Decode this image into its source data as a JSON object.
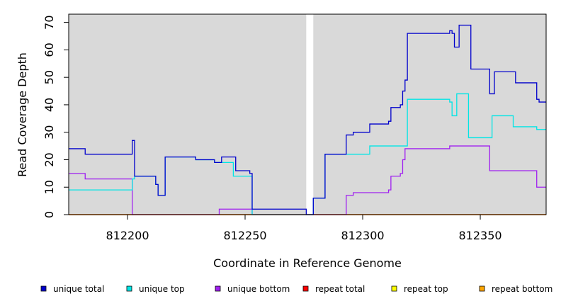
{
  "chart_data": {
    "type": "line",
    "title": "",
    "xlabel": "Coordinate in Reference Genome",
    "ylabel": "Read Coverage Depth",
    "xlim": [
      812175,
      812378
    ],
    "ylim": [
      0,
      73
    ],
    "x_ticks": [
      812200,
      812250,
      812300,
      812350
    ],
    "y_ticks": [
      0,
      10,
      20,
      30,
      40,
      50,
      60,
      70
    ],
    "x_tick_labels": [
      "812200",
      "812250",
      "812300",
      "812350"
    ],
    "y_tick_labels": [
      "0",
      "10",
      "20",
      "30",
      "40",
      "50",
      "60",
      "70"
    ],
    "grid": false,
    "shaded_regions": [
      {
        "x": [
          812175,
          812276
        ],
        "color": "#d9d9d9"
      },
      {
        "x": [
          812279,
          812378
        ],
        "color": "#d9d9d9"
      }
    ],
    "series": [
      {
        "name": "unique total",
        "color": "#0000cc",
        "step": true,
        "points": [
          [
            812175,
            24
          ],
          [
            812182,
            24
          ],
          [
            812182,
            22
          ],
          [
            812202,
            22
          ],
          [
            812202,
            27
          ],
          [
            812203,
            27
          ],
          [
            812203,
            14
          ],
          [
            812212,
            14
          ],
          [
            812212,
            11
          ],
          [
            812213,
            11
          ],
          [
            812213,
            7
          ],
          [
            812216,
            7
          ],
          [
            812216,
            21
          ],
          [
            812229,
            21
          ],
          [
            812229,
            20
          ],
          [
            812237,
            20
          ],
          [
            812237,
            19
          ],
          [
            812240,
            19
          ],
          [
            812240,
            21
          ],
          [
            812246,
            21
          ],
          [
            812246,
            16
          ],
          [
            812252,
            16
          ],
          [
            812252,
            15
          ],
          [
            812253,
            15
          ],
          [
            812253,
            2
          ],
          [
            812276,
            2
          ],
          [
            812276,
            0
          ],
          [
            812279,
            0
          ],
          [
            812279,
            6
          ],
          [
            812284,
            6
          ],
          [
            812284,
            22
          ],
          [
            812293,
            22
          ],
          [
            812293,
            29
          ],
          [
            812296,
            29
          ],
          [
            812296,
            30
          ],
          [
            812303,
            30
          ],
          [
            812303,
            33
          ],
          [
            812311,
            33
          ],
          [
            812311,
            34
          ],
          [
            812312,
            34
          ],
          [
            812312,
            39
          ],
          [
            812316,
            39
          ],
          [
            812316,
            40
          ],
          [
            812317,
            40
          ],
          [
            812317,
            45
          ],
          [
            812318,
            45
          ],
          [
            812318,
            49
          ],
          [
            812319,
            49
          ],
          [
            812319,
            66
          ],
          [
            812337,
            66
          ],
          [
            812337,
            67
          ],
          [
            812338,
            67
          ],
          [
            812338,
            66
          ],
          [
            812339,
            66
          ],
          [
            812339,
            61
          ],
          [
            812341,
            61
          ],
          [
            812341,
            69
          ],
          [
            812346,
            69
          ],
          [
            812346,
            53
          ],
          [
            812354,
            53
          ],
          [
            812354,
            44
          ],
          [
            812356,
            44
          ],
          [
            812356,
            52
          ],
          [
            812365,
            52
          ],
          [
            812365,
            48
          ],
          [
            812374,
            48
          ],
          [
            812374,
            42
          ],
          [
            812375,
            42
          ],
          [
            812375,
            41
          ],
          [
            812378,
            41
          ]
        ]
      },
      {
        "name": "unique top",
        "color": "#00e5e5",
        "step": true,
        "points": [
          [
            812175,
            9
          ],
          [
            812202,
            9
          ],
          [
            812202,
            13
          ],
          [
            812203,
            13
          ],
          [
            812203,
            14
          ],
          [
            812212,
            14
          ],
          [
            812212,
            11
          ],
          [
            812213,
            11
          ],
          [
            812213,
            7
          ],
          [
            812216,
            7
          ],
          [
            812216,
            21
          ],
          [
            812229,
            21
          ],
          [
            812229,
            20
          ],
          [
            812237,
            20
          ],
          [
            812237,
            19
          ],
          [
            812240,
            19
          ],
          [
            812240,
            19
          ],
          [
            812245,
            19
          ],
          [
            812245,
            14
          ],
          [
            812253,
            14
          ],
          [
            812253,
            0
          ],
          [
            812279,
            0
          ],
          [
            812279,
            6
          ],
          [
            812284,
            6
          ],
          [
            812284,
            22
          ],
          [
            812303,
            22
          ],
          [
            812303,
            25
          ],
          [
            812319,
            25
          ],
          [
            812319,
            42
          ],
          [
            812337,
            42
          ],
          [
            812337,
            41
          ],
          [
            812338,
            41
          ],
          [
            812338,
            36
          ],
          [
            812340,
            36
          ],
          [
            812340,
            44
          ],
          [
            812345,
            44
          ],
          [
            812345,
            28
          ],
          [
            812355,
            28
          ],
          [
            812355,
            36
          ],
          [
            812364,
            36
          ],
          [
            812364,
            32
          ],
          [
            812374,
            32
          ],
          [
            812374,
            31
          ],
          [
            812378,
            31
          ]
        ]
      },
      {
        "name": "unique bottom",
        "color": "#a020f0",
        "step": true,
        "points": [
          [
            812175,
            15
          ],
          [
            812182,
            15
          ],
          [
            812182,
            13
          ],
          [
            812202,
            13
          ],
          [
            812202,
            0
          ],
          [
            812239,
            0
          ],
          [
            812239,
            2
          ],
          [
            812253,
            2
          ],
          [
            812253,
            0
          ],
          [
            812293,
            0
          ],
          [
            812293,
            7
          ],
          [
            812296,
            7
          ],
          [
            812296,
            8
          ],
          [
            812311,
            8
          ],
          [
            812311,
            9
          ],
          [
            812312,
            9
          ],
          [
            812312,
            14
          ],
          [
            812316,
            14
          ],
          [
            812316,
            15
          ],
          [
            812317,
            15
          ],
          [
            812317,
            20
          ],
          [
            812318,
            20
          ],
          [
            812318,
            24
          ],
          [
            812337,
            24
          ],
          [
            812337,
            25
          ],
          [
            812354,
            25
          ],
          [
            812354,
            16
          ],
          [
            812374,
            16
          ],
          [
            812374,
            10
          ],
          [
            812378,
            10
          ]
        ]
      },
      {
        "name": "repeat total",
        "color": "#ff0000",
        "step": true,
        "points": [
          [
            812175,
            0
          ],
          [
            812378,
            0
          ]
        ]
      },
      {
        "name": "repeat top",
        "color": "#ffff00",
        "step": true,
        "points": [
          [
            812175,
            0
          ],
          [
            812378,
            0
          ]
        ]
      },
      {
        "name": "repeat bottom",
        "color": "#ffa500",
        "step": true,
        "points": [
          [
            812175,
            0
          ],
          [
            812378,
            0
          ]
        ]
      }
    ],
    "legend_position": "bottom"
  }
}
